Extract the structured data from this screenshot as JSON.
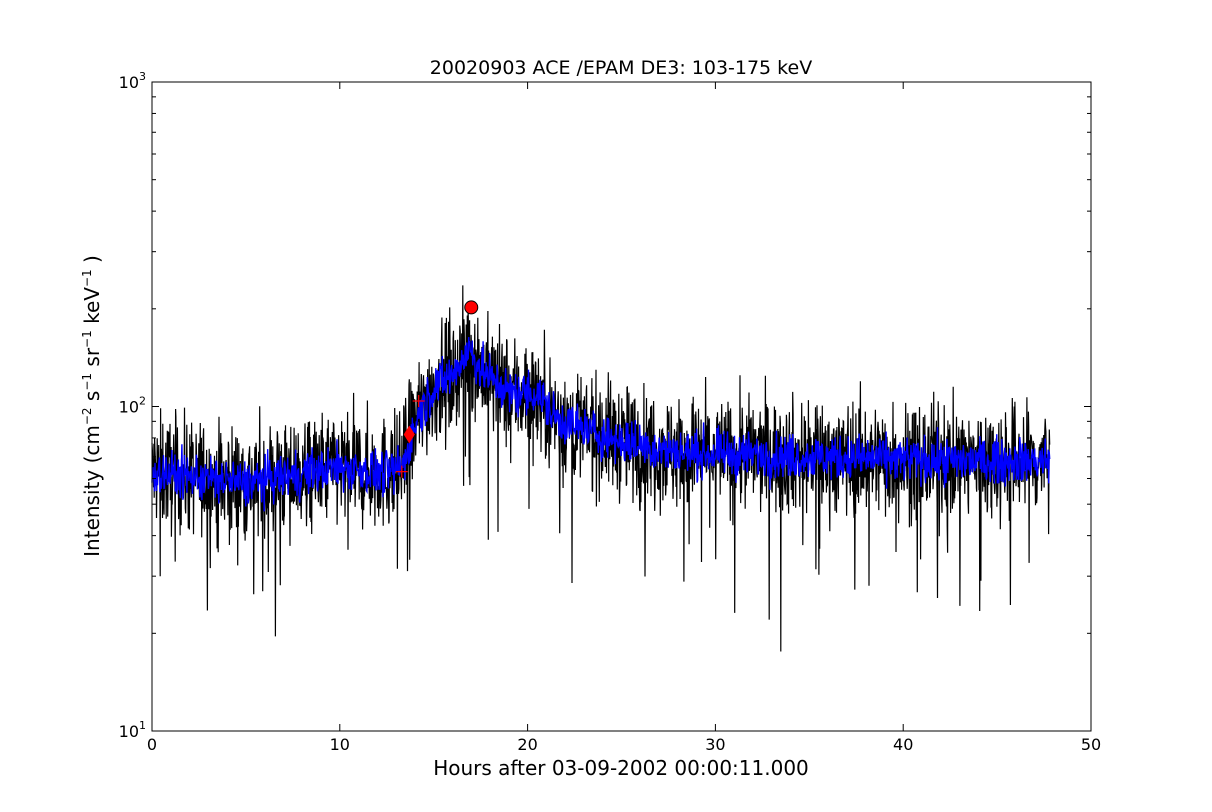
{
  "chart_data": {
    "type": "line",
    "title": "20020903 ACE /EPAM DE3: 103-175 keV",
    "xlabel": "Hours after 03-09-2002 00:00:11.000",
    "ylabel_text": "Intensity (cm",
    "ylabel_sup1": "−2",
    "ylabel_mid1": " s",
    "ylabel_sup2": "−1",
    "ylabel_mid2": " sr",
    "ylabel_sup3": "−1",
    "ylabel_mid3": " keV",
    "ylabel_sup4": "−1",
    "ylabel_end": " )",
    "xlim": [
      0,
      50
    ],
    "ylim": [
      10,
      1000
    ],
    "yscale": "log",
    "grid": false,
    "x_ticks": [
      {
        "value": 0,
        "label": "0"
      },
      {
        "value": 10,
        "label": "10"
      },
      {
        "value": 20,
        "label": "20"
      },
      {
        "value": 30,
        "label": "30"
      },
      {
        "value": 40,
        "label": "40"
      },
      {
        "value": 50,
        "label": "50"
      }
    ],
    "y_ticks": [
      {
        "value": 10,
        "base": "10",
        "exp": "1"
      },
      {
        "value": 100,
        "base": "10",
        "exp": "2"
      },
      {
        "value": 1000,
        "base": "10",
        "exp": "3"
      }
    ],
    "series": [
      {
        "style": "raw",
        "color": "#000000",
        "x_range": [
          0,
          47.8
        ],
        "profile": [
          {
            "x": 0,
            "y": 63
          },
          {
            "x": 5,
            "y": 58
          },
          {
            "x": 8,
            "y": 62
          },
          {
            "x": 10,
            "y": 65
          },
          {
            "x": 12.5,
            "y": 62
          },
          {
            "x": 13.3,
            "y": 65
          },
          {
            "x": 14.2,
            "y": 95
          },
          {
            "x": 15,
            "y": 115
          },
          {
            "x": 16,
            "y": 125
          },
          {
            "x": 16.9,
            "y": 150
          },
          {
            "x": 17.5,
            "y": 130
          },
          {
            "x": 19,
            "y": 110
          },
          {
            "x": 20.5,
            "y": 110
          },
          {
            "x": 21.5,
            "y": 92
          },
          {
            "x": 23,
            "y": 85
          },
          {
            "x": 25,
            "y": 78
          },
          {
            "x": 28,
            "y": 72
          },
          {
            "x": 35,
            "y": 70
          },
          {
            "x": 42,
            "y": 68
          },
          {
            "x": 47.8,
            "y": 68
          }
        ],
        "spread": 0.2
      },
      {
        "style": "smoothed",
        "color": "#0000ff",
        "x_range": [
          0,
          47.8
        ],
        "spread": 0.08
      }
    ],
    "markers": [
      {
        "x": 13.3,
        "y": 63,
        "shape": "plus",
        "color": "#ff0000"
      },
      {
        "x": 13.7,
        "y": 82,
        "shape": "diamond",
        "color": "#ff0000"
      },
      {
        "x": 14.2,
        "y": 104,
        "shape": "plus",
        "color": "#ff0000"
      },
      {
        "x": 17.0,
        "y": 202,
        "shape": "circle",
        "color": "#ff0000"
      }
    ]
  }
}
